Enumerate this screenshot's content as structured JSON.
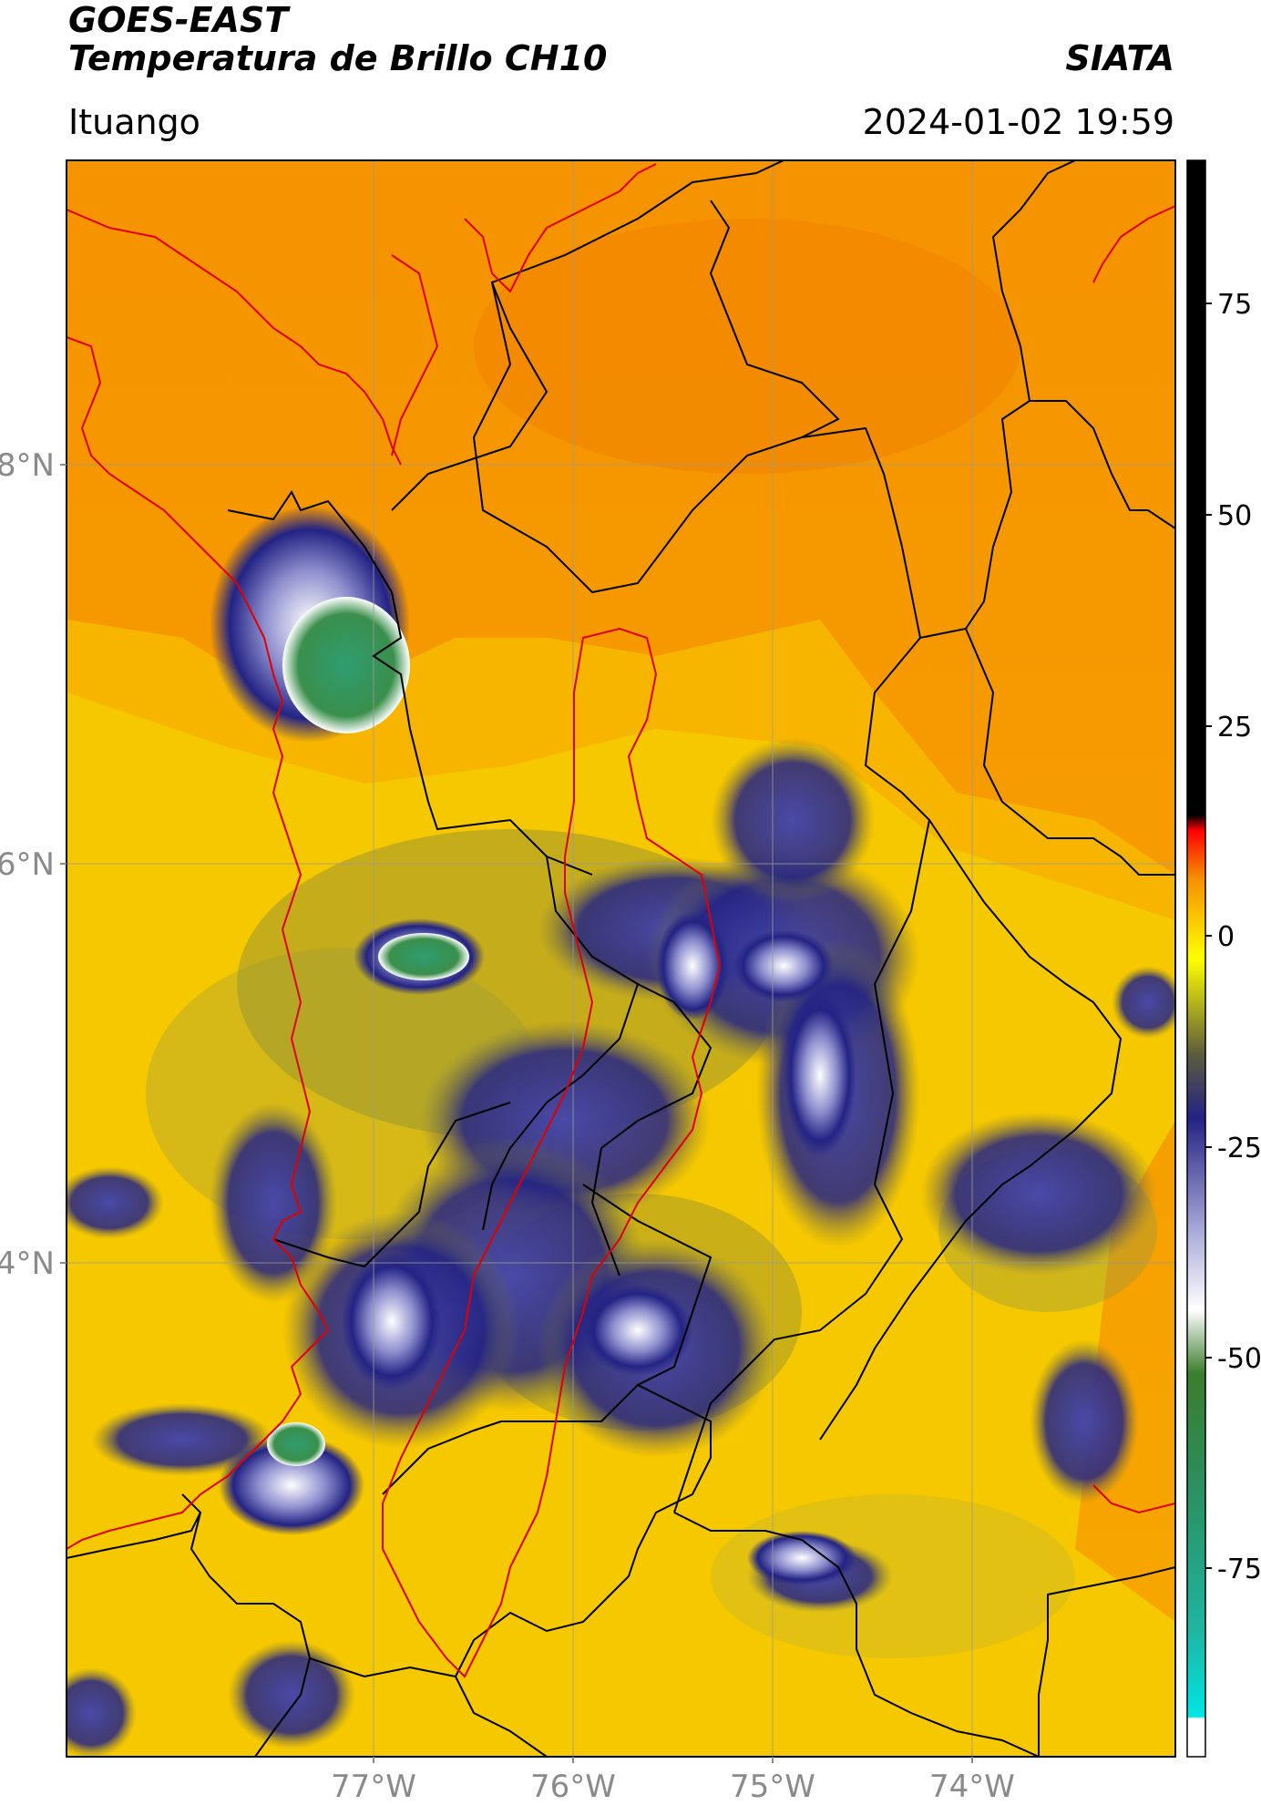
{
  "header": {
    "satellite": "GOES-EAST",
    "product": "Temperatura de Brillo CH10",
    "organization": "SIATA",
    "location": "Ituango",
    "timestamp": "2024-01-02 19:59"
  },
  "map": {
    "lat_labels": [
      "8°N",
      "6°N",
      "4°N"
    ],
    "lon_labels": [
      "77°W",
      "76°W",
      "75°W",
      "74°W"
    ],
    "background_color": "#f6c800",
    "cold_cloud_color": "#232384",
    "warm_land_color": "#f59000",
    "border_color": "#000000",
    "region_outline_color": "#e00000"
  },
  "colorbar": {
    "ticks": [
      "75",
      "50",
      "25",
      "0",
      "-25",
      "-50",
      "-75"
    ],
    "colors": [
      "#000000",
      "#ff0000",
      "#f59000",
      "#ffff00",
      "#232384",
      "#ffffff",
      "#2e8b57",
      "#00e5e5"
    ]
  }
}
